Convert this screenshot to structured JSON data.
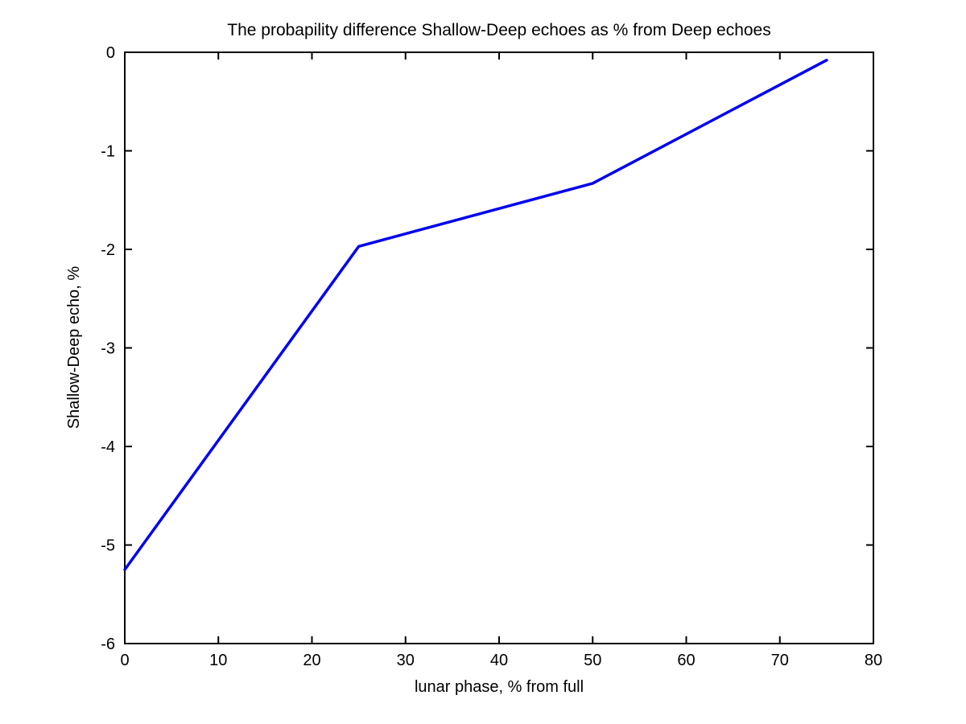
{
  "chart_data": {
    "type": "line",
    "title": "The probapility difference Shallow-Deep echoes as % from Deep echoes",
    "xlabel": "lunar phase, % from full",
    "ylabel": "Shallow-Deep echo, %",
    "x": [
      0,
      25,
      50,
      75
    ],
    "y": [
      -5.25,
      -1.97,
      -1.33,
      -0.08
    ],
    "xlim": [
      0,
      80
    ],
    "ylim": [
      -6,
      0
    ],
    "xticks": [
      0,
      10,
      20,
      30,
      40,
      50,
      60,
      70,
      80
    ],
    "yticks": [
      0,
      -1,
      -2,
      -3,
      -4,
      -5,
      -6
    ],
    "grid": false,
    "legend_position": "none",
    "line_color": "#0000EE",
    "line_width": 3.5,
    "axes_color": "#000000",
    "background_color": "#FFFFFF"
  }
}
